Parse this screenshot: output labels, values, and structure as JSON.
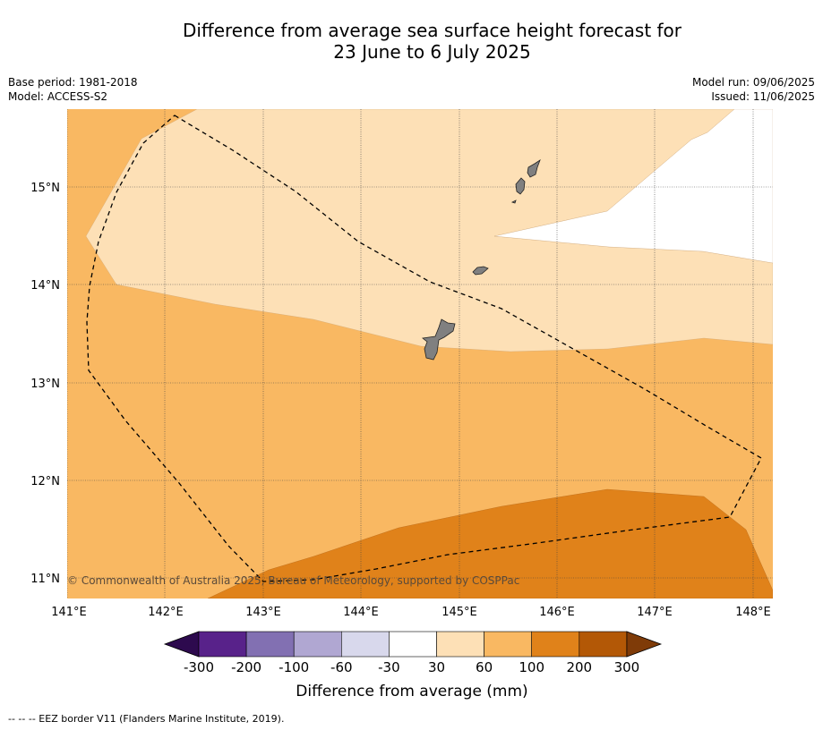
{
  "title": {
    "line1": "Difference from average sea surface height forecast for",
    "line2": "23 June to 6 July 2025"
  },
  "meta_left": {
    "base_period": "Base period: 1981-2018",
    "model": "Model: ACCESS-S2"
  },
  "meta_right": {
    "model_run": "Model run: 09/06/2025",
    "issued": "Issued: 11/06/2025"
  },
  "map": {
    "lat_labels": [
      "15°N",
      "14°N",
      "13°N",
      "12°N",
      "11°N"
    ],
    "lon_labels": [
      "141°E",
      "142°E",
      "143°E",
      "144°E",
      "145°E",
      "146°E",
      "147°E",
      "148°E"
    ],
    "copyright": "© Commonwealth of Australia 2025, Bureau of Meteorology, supported by COSPPac",
    "colors": {
      "c30_60": "#fde0b6",
      "c60_100": "#f9b862",
      "c100_200": "#e0821a",
      "land": "#808080"
    }
  },
  "colorbar": {
    "ticks": [
      "-300",
      "-200",
      "-100",
      "-60",
      "-30",
      "30",
      "60",
      "100",
      "200",
      "300"
    ],
    "colors": [
      "#2d0a4e",
      "#58228a",
      "#8270b2",
      "#b0a7d2",
      "#d8d8ec",
      "#ffffff",
      "#fde0b6",
      "#f9b862",
      "#e0821a",
      "#b35806",
      "#7f3b08"
    ],
    "label": "Difference from average (mm)"
  },
  "footer": "-- -- -- EEZ border V11 (Flanders Marine Institute, 2019)."
}
